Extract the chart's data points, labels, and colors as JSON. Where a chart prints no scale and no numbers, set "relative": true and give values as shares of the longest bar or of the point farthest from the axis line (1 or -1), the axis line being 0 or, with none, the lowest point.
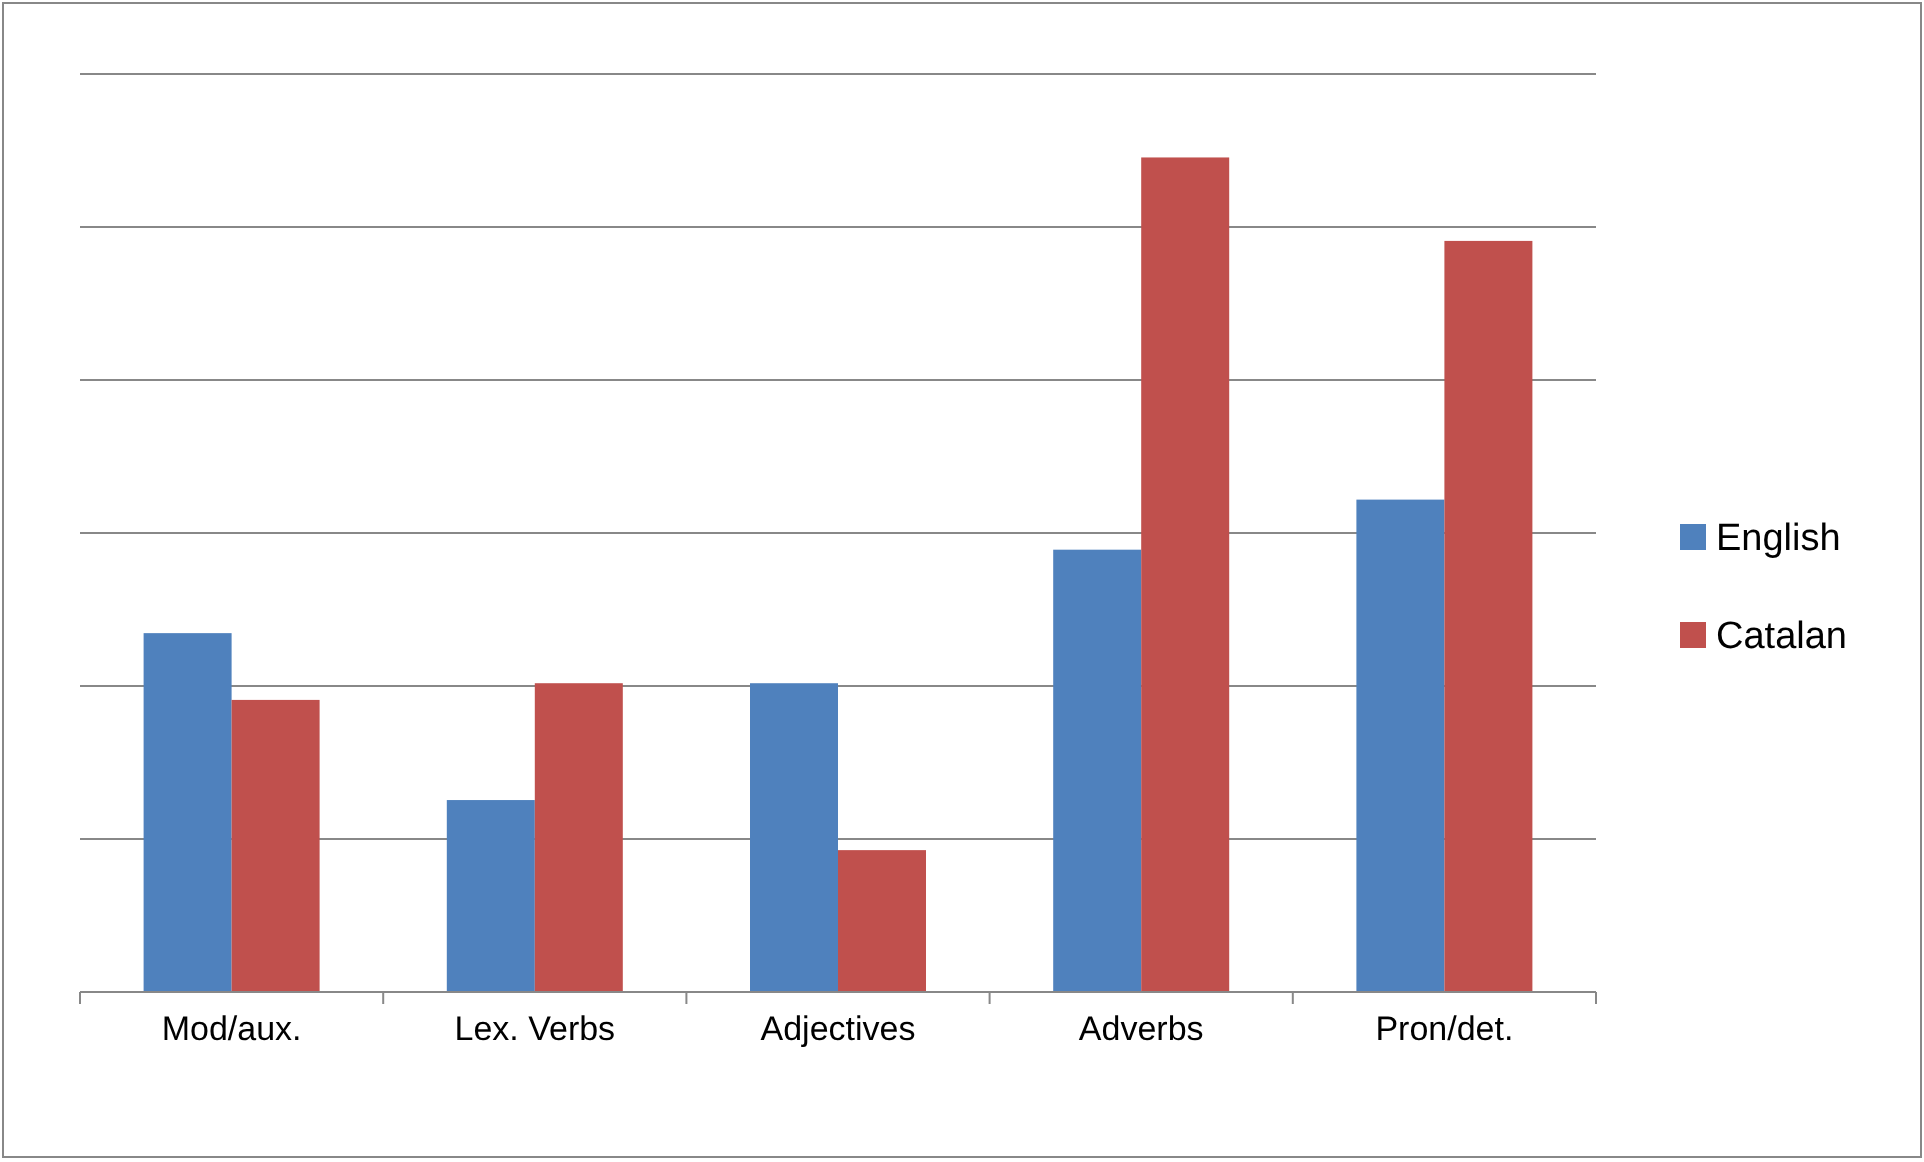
{
  "chart_data": {
    "type": "bar",
    "relative": true,
    "categories": [
      "Mod/aux.",
      "Lex. Verbs",
      "Adjectives",
      "Adverbs",
      "Pron/det."
    ],
    "series": [
      {
        "name": "English",
        "color": "#4f81bd",
        "values": [
          0.43,
          0.23,
          0.37,
          0.53,
          0.59
        ]
      },
      {
        "name": "Catalan",
        "color": "#c0504d",
        "values": [
          0.35,
          0.37,
          0.17,
          1,
          0.9
        ]
      }
    ],
    "grid": "y",
    "legend": "right"
  }
}
